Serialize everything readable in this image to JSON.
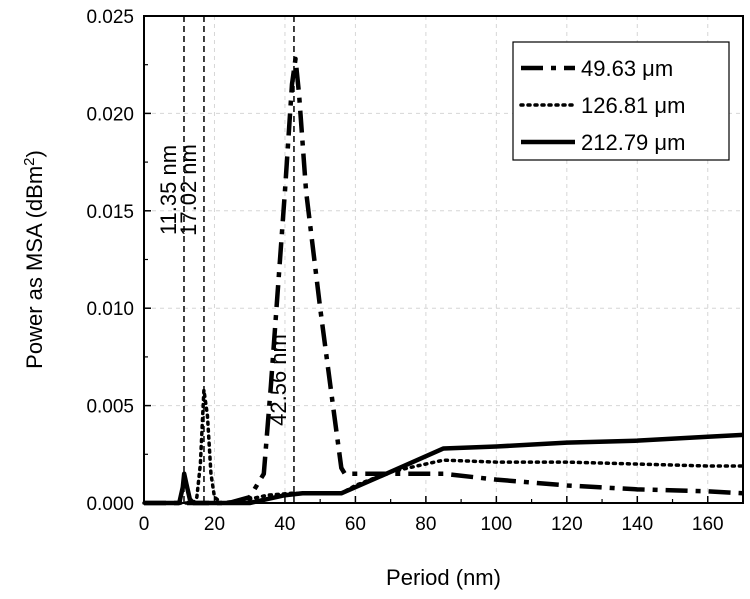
{
  "chart_data": {
    "type": "line",
    "title": "",
    "xlabel": "Period (nm)",
    "ylabel_main": "Power as MSA (dBm",
    "ylabel_sup": "2",
    "ylabel_tail": ")",
    "xlim": [
      0,
      170
    ],
    "ylim": [
      0,
      0.025
    ],
    "xticks": [
      0,
      20,
      40,
      60,
      80,
      100,
      120,
      140,
      160
    ],
    "yticks": [
      0.0,
      0.005,
      0.01,
      0.015,
      0.02,
      0.025
    ],
    "ytick_labels": [
      "0.000",
      "0.005",
      "0.010",
      "0.015",
      "0.020",
      "0.025"
    ],
    "grid": true,
    "legend_position": "top-right",
    "series": [
      {
        "name": "49.63 μm",
        "style": "dashdot",
        "x": [
          0,
          24,
          30,
          34,
          36,
          38,
          40,
          42,
          43,
          44,
          46,
          50,
          54,
          56,
          57,
          60,
          70,
          85,
          100,
          120,
          140,
          160,
          170
        ],
        "y": [
          0,
          0,
          0.0003,
          0.0015,
          0.006,
          0.011,
          0.016,
          0.0215,
          0.0228,
          0.021,
          0.016,
          0.01,
          0.0045,
          0.0018,
          0.0015,
          0.0015,
          0.0015,
          0.0015,
          0.0012,
          0.0009,
          0.0007,
          0.0006,
          0.0005
        ]
      },
      {
        "name": "126.81 μm",
        "style": "dotted",
        "x": [
          0,
          14,
          15,
          16,
          17,
          18,
          19,
          20,
          22,
          30,
          35,
          42,
          45,
          50,
          56,
          60,
          70,
          85,
          100,
          120,
          140,
          160,
          170
        ],
        "y": [
          0,
          0,
          0.0003,
          0.002,
          0.0058,
          0.0045,
          0.0015,
          0.0003,
          0,
          0.0002,
          0.0004,
          0.0005,
          0.0005,
          0.0005,
          0.0005,
          0.0009,
          0.0016,
          0.0022,
          0.0021,
          0.0021,
          0.002,
          0.0019,
          0.0019
        ]
      },
      {
        "name": "212.79 μm",
        "style": "solid",
        "x": [
          0,
          10,
          11,
          11.4,
          12,
          13,
          14,
          20,
          30,
          35,
          40,
          45,
          50,
          56,
          70,
          85,
          100,
          120,
          140,
          160,
          170
        ],
        "y": [
          0,
          0,
          0.0008,
          0.0015,
          0.001,
          0.0002,
          0,
          0,
          0,
          0.0002,
          0.0004,
          0.0005,
          0.0005,
          0.0005,
          0.0016,
          0.0028,
          0.0029,
          0.0031,
          0.0032,
          0.0034,
          0.0035
        ]
      }
    ],
    "vlines": [
      {
        "x": 11.35,
        "label": "11.35 nm"
      },
      {
        "x": 17.02,
        "label": "17.02 nm"
      },
      {
        "x": 42.56,
        "label": "42.56 nm"
      }
    ]
  }
}
